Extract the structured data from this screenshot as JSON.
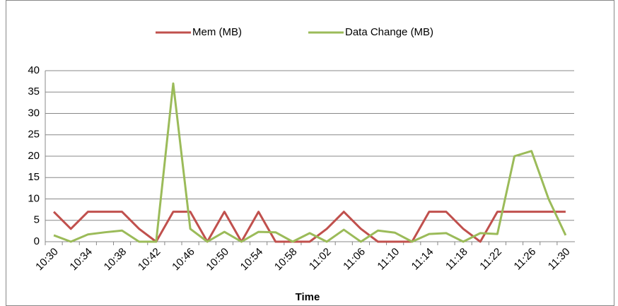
{
  "chart_data": {
    "type": "line",
    "x_label": "Time",
    "categories": [
      "10:30",
      null,
      "10:34",
      null,
      "10:38",
      null,
      "10:42",
      null,
      "10:46",
      null,
      "10:50",
      null,
      "10:54",
      null,
      "10:58",
      null,
      "11:02",
      null,
      "11:06",
      null,
      "11:10",
      null,
      "11:14",
      null,
      "11:18",
      null,
      "11:22",
      null,
      "11:26",
      null,
      "11:30"
    ],
    "series": [
      {
        "name": "Mem (MB)",
        "color": "#c0504d",
        "values": [
          7,
          3,
          7,
          7,
          7,
          3,
          0,
          7,
          7,
          0,
          7,
          0,
          7,
          0,
          0,
          0,
          3,
          7,
          3,
          0,
          0,
          0,
          7,
          7,
          3,
          0,
          7,
          7,
          7,
          7,
          7
        ]
      },
      {
        "name": "Data Change (MB)",
        "color": "#9bbb59",
        "values": [
          1.5,
          0,
          1.7,
          2.2,
          2.6,
          0,
          0,
          37,
          3,
          0,
          2.3,
          0,
          2.3,
          2.2,
          0,
          2,
          0,
          2.8,
          0,
          2.6,
          2.1,
          0,
          1.8,
          2,
          0,
          2,
          1.8,
          20,
          21.2,
          10,
          1.5
        ]
      }
    ],
    "ylim": [
      0,
      40
    ],
    "yticks": [
      0,
      5,
      10,
      15,
      20,
      25,
      30,
      35,
      40
    ],
    "grid": true,
    "legend": "top"
  }
}
